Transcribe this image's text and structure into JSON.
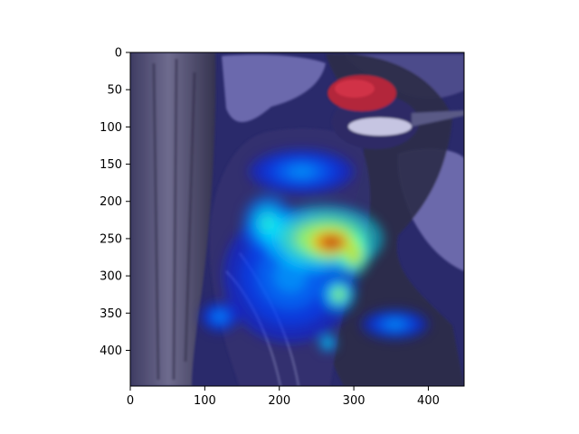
{
  "chart_data": {
    "type": "heatmap",
    "title": "",
    "xlabel": "",
    "ylabel": "",
    "xlim": [
      0,
      448
    ],
    "ylim": [
      448,
      0
    ],
    "x_ticks": [
      0,
      100,
      200,
      300,
      400
    ],
    "y_ticks": [
      0,
      50,
      100,
      150,
      200,
      250,
      300,
      350,
      400
    ],
    "colormap": "jet",
    "overlay_alpha": 0.5,
    "background_image": "woodpecker-photo",
    "heat_blobs": [
      {
        "x": 270,
        "y": 255,
        "rx": 40,
        "ry": 25,
        "intensity": 1.0
      },
      {
        "x": 260,
        "y": 250,
        "rx": 80,
        "ry": 45,
        "intensity": 0.7
      },
      {
        "x": 300,
        "y": 270,
        "rx": 22,
        "ry": 30,
        "intensity": 0.75
      },
      {
        "x": 280,
        "y": 325,
        "rx": 22,
        "ry": 22,
        "intensity": 0.6
      },
      {
        "x": 185,
        "y": 230,
        "rx": 35,
        "ry": 40,
        "intensity": 0.45
      },
      {
        "x": 215,
        "y": 300,
        "rx": 90,
        "ry": 90,
        "intensity": 0.3
      },
      {
        "x": 265,
        "y": 390,
        "rx": 12,
        "ry": 12,
        "intensity": 0.45
      },
      {
        "x": 355,
        "y": 365,
        "rx": 45,
        "ry": 20,
        "intensity": 0.3
      },
      {
        "x": 120,
        "y": 355,
        "rx": 25,
        "ry": 20,
        "intensity": 0.3
      },
      {
        "x": 230,
        "y": 160,
        "rx": 70,
        "ry": 30,
        "intensity": 0.3
      }
    ]
  }
}
